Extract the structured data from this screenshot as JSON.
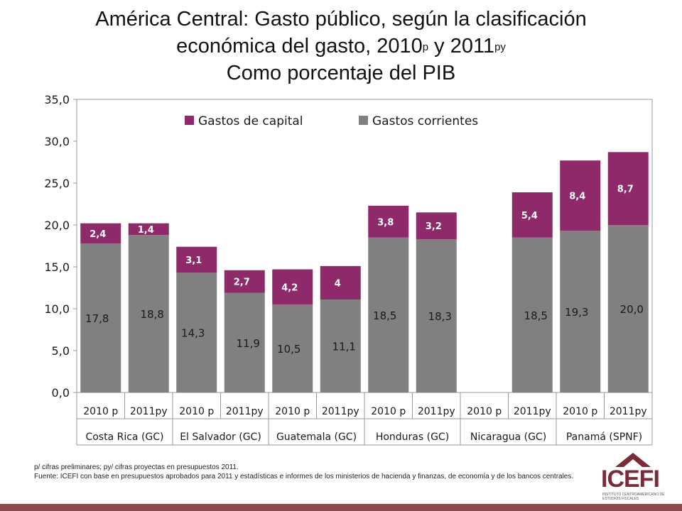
{
  "title": {
    "line1": "América Central: Gasto público, según la clasificación",
    "line2_pre": "económica del gasto, 2010",
    "sup1": "p",
    "line2_mid": " y 2011",
    "sup2": "py",
    "line3": "Como porcentaje del PIB"
  },
  "notes": {
    "line1": "p/ cifras preliminares; py/ cifras proyectas en presupuestos 2011.",
    "line2": "Fuente: ICEFI con base en presupuestos aprobados para 2011 y estadísticas e informes de los ministerios de hacienda y finanzas, de economía y de los bancos centrales."
  },
  "logo": {
    "text": "ICEFI",
    "subtitle": "INSTITUTO CENTROAMERICANO DE ESTUDIOS FISCALES"
  },
  "colors": {
    "capital": "#8e2a6a",
    "corrientes": "#808080",
    "axis": "#9a9a9a",
    "band": "#8c4a4a"
  },
  "chart_data": {
    "type": "bar",
    "stacked": true,
    "ylim": [
      0,
      35
    ],
    "yticks": [
      "0,0",
      "5,0",
      "10,0",
      "15,0",
      "20,0",
      "25,0",
      "30,0",
      "35,0"
    ],
    "ytick_values": [
      0,
      5,
      10,
      15,
      20,
      25,
      30,
      35
    ],
    "grid": false,
    "legend_position": "top",
    "categories": [
      "2010 p",
      "2011py",
      "2010 p",
      "2011py",
      "2010 p",
      "2011py",
      "2010 p",
      "2011py",
      "2010 p",
      "2011py",
      "2010 p",
      "2011py"
    ],
    "groups": [
      "Costa Rica (GC)",
      "El Salvador (GC)",
      "Guatemala (GC)",
      "Honduras (GC)",
      "Nicaragua (GC)",
      "Panamá (SPNF)"
    ],
    "series": [
      {
        "name": "Gastos corrientes",
        "values": [
          17.8,
          18.8,
          14.3,
          11.9,
          10.5,
          11.1,
          18.5,
          18.3,
          null,
          18.5,
          19.3,
          20.0
        ],
        "labels": [
          "17,8",
          "18,8",
          "14,3",
          "11,9",
          "10,5",
          "11,1",
          "18,5",
          "18,3",
          "",
          "18,5",
          "19,3",
          "20,0"
        ]
      },
      {
        "name": "Gastos de capital",
        "values": [
          2.4,
          1.4,
          3.1,
          2.7,
          4.2,
          4.0,
          3.8,
          3.2,
          null,
          5.4,
          8.4,
          8.7
        ],
        "labels": [
          "2,4",
          "1,4",
          "3,1",
          "2,7",
          "4,2",
          "4",
          "3,8",
          "3,2",
          "",
          "5,4",
          "8,4",
          "8,7"
        ]
      }
    ],
    "legend": [
      "Gastos de capital",
      "Gastos corrientes"
    ]
  }
}
